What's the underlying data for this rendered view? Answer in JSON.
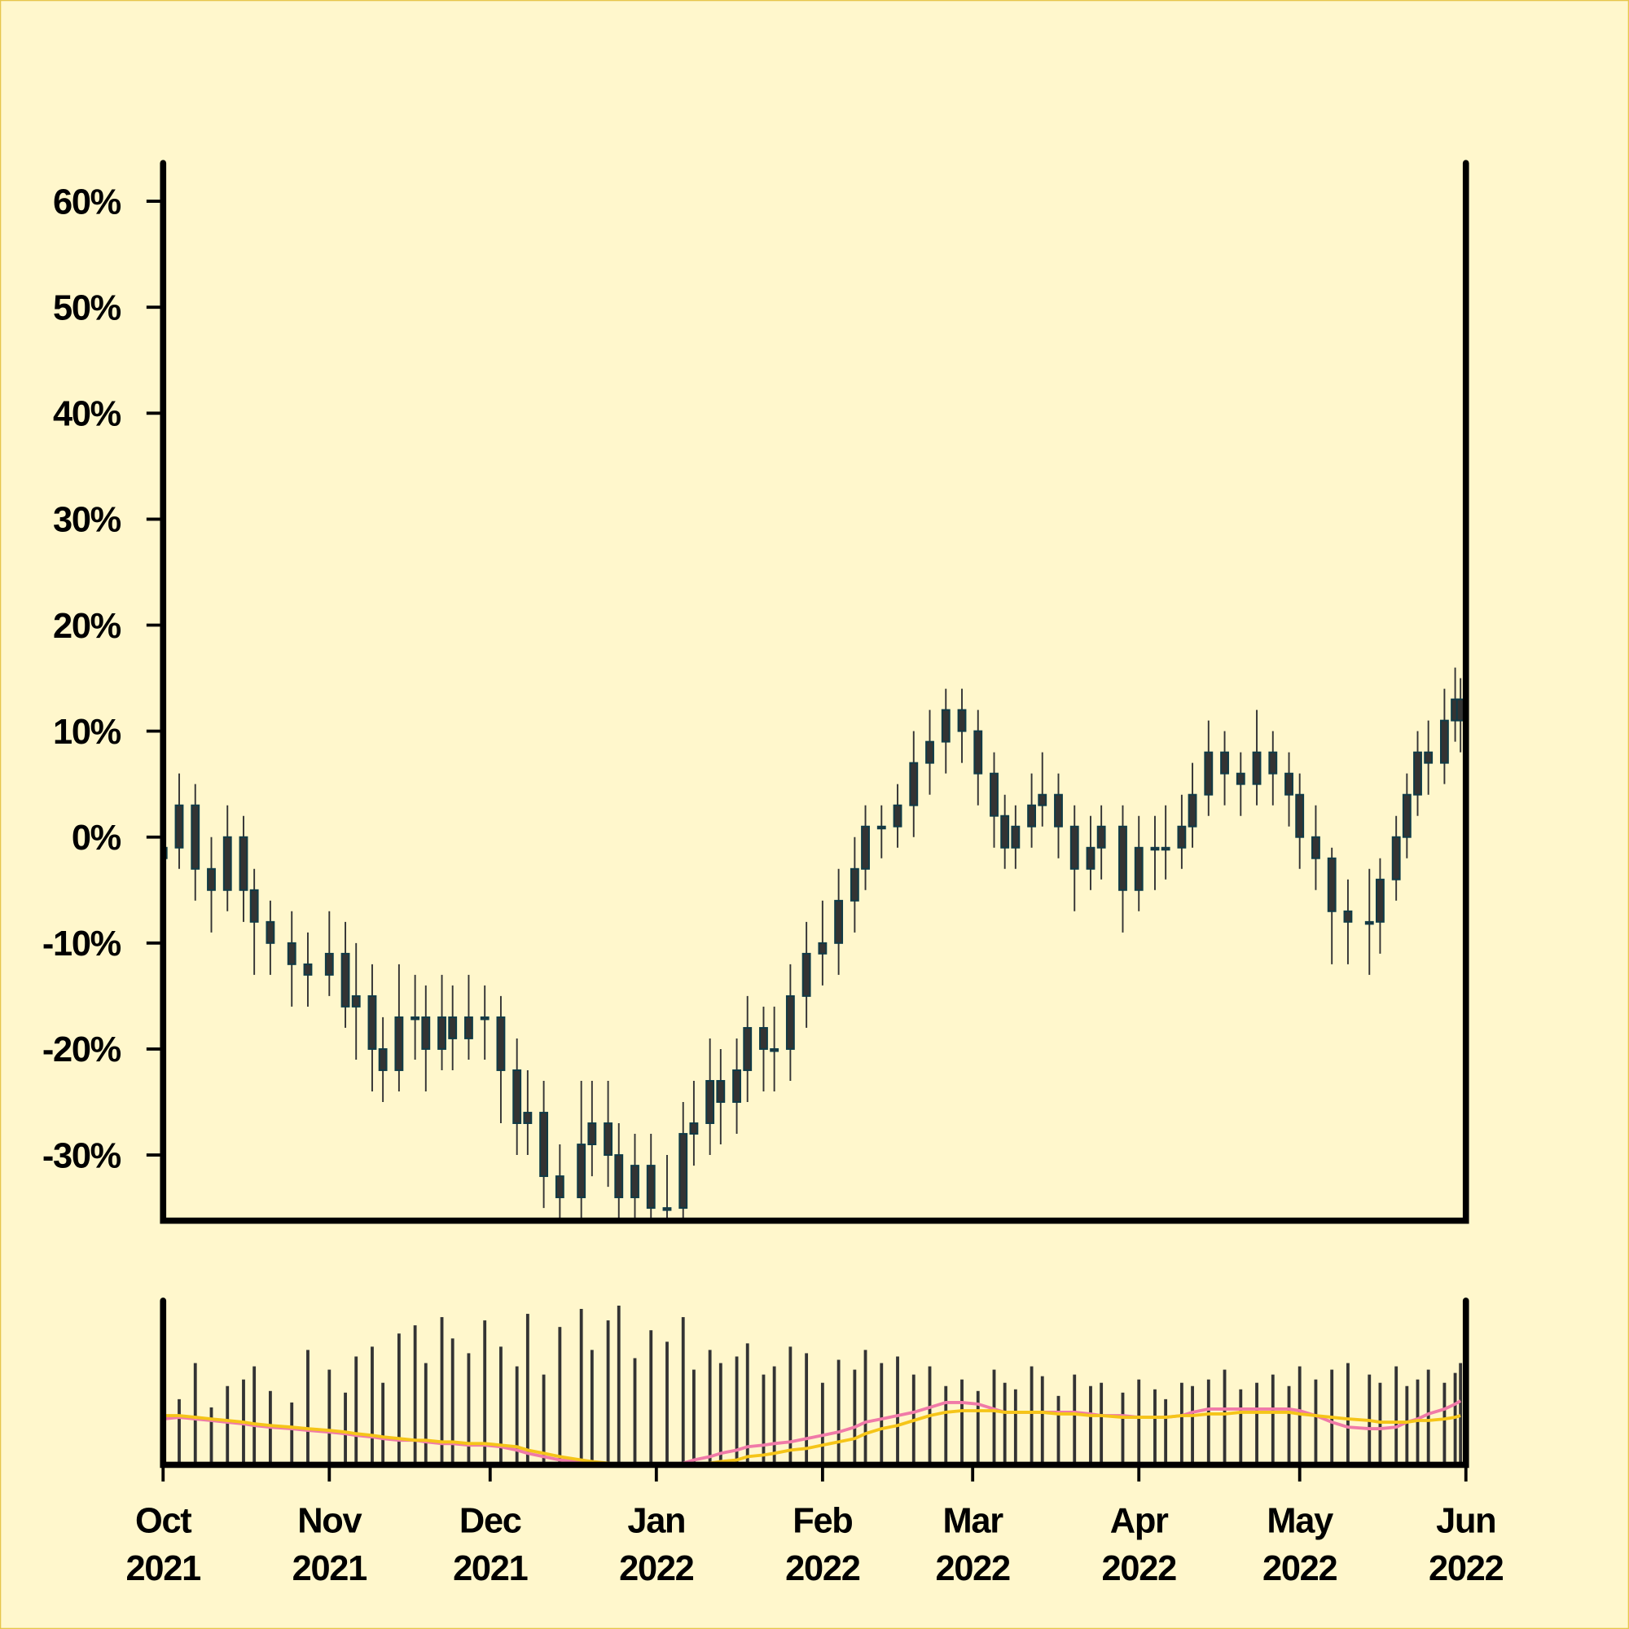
{
  "chart_data": [
    {
      "type": "candlestick",
      "x": [
        0,
        3,
        6,
        9,
        12,
        15,
        17,
        20,
        24,
        27,
        31,
        34,
        36,
        39,
        41,
        44,
        47,
        49,
        52,
        54,
        57,
        60,
        63,
        66,
        68,
        71,
        74,
        78,
        80,
        83,
        85,
        88,
        91,
        94,
        97,
        99,
        102,
        104,
        107,
        109,
        112,
        114,
        117,
        120,
        123,
        126,
        129,
        131,
        134,
        137,
        140,
        143,
        146,
        149,
        152,
        155,
        157,
        159,
        162,
        164,
        167,
        170,
        173,
        175,
        179,
        182,
        185,
        187,
        190,
        192,
        195,
        198,
        201,
        204,
        207,
        210,
        212,
        215,
        218,
        221,
        225,
        227,
        230,
        232,
        234,
        236,
        239,
        241,
        242
      ],
      "open": [
        -2,
        -1,
        3,
        -3,
        -5,
        0,
        -5,
        -8,
        -10,
        -12,
        -13,
        -11,
        -16,
        -15,
        -20,
        -22,
        -17,
        -17,
        -20,
        -17,
        -19,
        -17,
        -17,
        -22,
        -27,
        -26,
        -32,
        -34,
        -29,
        -27,
        -30,
        -34,
        -31,
        -35,
        -35,
        -28,
        -27,
        -23,
        -25,
        -22,
        -18,
        -20,
        -20,
        -15,
        -11,
        -10,
        -6,
        -3,
        1,
        1,
        3,
        7,
        9,
        12,
        10,
        6,
        2,
        -1,
        1,
        3,
        4,
        1,
        -3,
        -1,
        1,
        -5,
        -1,
        -1,
        -1,
        1,
        4,
        8,
        6,
        5,
        8,
        6,
        4,
        0,
        -2,
        -7,
        -8,
        -8,
        -4,
        0,
        4,
        8,
        7,
        11,
        13
      ],
      "high": [
        1,
        6,
        5,
        0,
        3,
        2,
        -3,
        -6,
        -7,
        -9,
        -7,
        -8,
        -10,
        -12,
        -17,
        -12,
        -13,
        -14,
        -13,
        -14,
        -13,
        -14,
        -15,
        -19,
        -22,
        -23,
        -29,
        -23,
        -23,
        -23,
        -27,
        -28,
        -28,
        -30,
        -25,
        -23,
        -19,
        -20,
        -19,
        -15,
        -16,
        -16,
        -12,
        -8,
        -6,
        -3,
        0,
        3,
        3,
        5,
        10,
        12,
        14,
        14,
        12,
        8,
        4,
        3,
        6,
        8,
        6,
        3,
        2,
        3,
        3,
        2,
        2,
        3,
        4,
        7,
        11,
        10,
        8,
        12,
        10,
        8,
        6,
        3,
        -1,
        -4,
        -3,
        -2,
        2,
        6,
        10,
        11,
        14,
        16,
        15
      ],
      "low": [
        -4,
        -3,
        -6,
        -9,
        -7,
        -8,
        -13,
        -13,
        -16,
        -16,
        -15,
        -18,
        -21,
        -24,
        -25,
        -24,
        -21,
        -24,
        -22,
        -22,
        -21,
        -21,
        -27,
        -30,
        -30,
        -35,
        -37,
        -36,
        -32,
        -33,
        -37,
        -37,
        -38,
        -38,
        -37,
        -31,
        -30,
        -29,
        -28,
        -25,
        -24,
        -24,
        -23,
        -18,
        -14,
        -13,
        -9,
        -5,
        -2,
        -1,
        0,
        4,
        6,
        7,
        3,
        -1,
        -3,
        -3,
        -1,
        1,
        -2,
        -7,
        -5,
        -4,
        -9,
        -7,
        -5,
        -4,
        -3,
        -1,
        2,
        3,
        2,
        3,
        3,
        1,
        -3,
        -5,
        -12,
        -12,
        -13,
        -11,
        -6,
        -2,
        2,
        4,
        5,
        9,
        8
      ],
      "close": [
        -1,
        3,
        -3,
        -5,
        0,
        -5,
        -8,
        -10,
        -12,
        -13,
        -11,
        -16,
        -15,
        -20,
        -22,
        -17,
        -17,
        -20,
        -17,
        -19,
        -17,
        -17,
        -22,
        -27,
        -26,
        -32,
        -34,
        -29,
        -27,
        -30,
        -34,
        -31,
        -35,
        -35,
        -28,
        -27,
        -23,
        -25,
        -22,
        -18,
        -20,
        -20,
        -15,
        -11,
        -10,
        -6,
        -3,
        1,
        1,
        3,
        7,
        9,
        12,
        10,
        6,
        2,
        -1,
        1,
        3,
        4,
        1,
        -3,
        -1,
        1,
        -5,
        -1,
        -1,
        -1,
        1,
        4,
        8,
        6,
        5,
        8,
        6,
        4,
        0,
        -2,
        -7,
        -8,
        -8,
        -4,
        0,
        4,
        8,
        7,
        11,
        13,
        11
      ],
      "color": "#333333",
      "edge_color": "#0f3b47",
      "xlim": [
        0,
        243
      ],
      "ylim": [
        -36.2,
        63.6
      ],
      "yticks": [
        {
          "value": -30,
          "label": "-30%"
        },
        {
          "value": -20,
          "label": "-20%"
        },
        {
          "value": -10,
          "label": "-10%"
        },
        {
          "value": 0,
          "label": "0%"
        },
        {
          "value": 10,
          "label": "10%"
        },
        {
          "value": 20,
          "label": "20%"
        },
        {
          "value": 30,
          "label": "30%"
        },
        {
          "value": 40,
          "label": "40%"
        },
        {
          "value": 50,
          "label": "50%"
        },
        {
          "value": 60,
          "label": "60%"
        }
      ]
    },
    {
      "type": "volume",
      "x": [
        0,
        3,
        6,
        9,
        12,
        15,
        17,
        20,
        24,
        27,
        31,
        34,
        36,
        39,
        41,
        44,
        47,
        49,
        52,
        54,
        57,
        60,
        63,
        66,
        68,
        71,
        74,
        78,
        80,
        83,
        85,
        88,
        91,
        94,
        97,
        99,
        102,
        104,
        107,
        109,
        112,
        114,
        117,
        120,
        123,
        126,
        129,
        131,
        134,
        137,
        140,
        143,
        146,
        149,
        152,
        155,
        157,
        159,
        162,
        164,
        167,
        170,
        173,
        175,
        179,
        182,
        185,
        187,
        190,
        192,
        195,
        198,
        201,
        204,
        207,
        210,
        212,
        215,
        218,
        221,
        225,
        227,
        230,
        232,
        234,
        236,
        239,
        241,
        242
      ],
      "values": [
        55,
        40,
        62,
        35,
        48,
        52,
        60,
        45,
        38,
        70,
        58,
        44,
        66,
        72,
        50,
        80,
        85,
        62,
        90,
        77,
        68,
        88,
        72,
        60,
        92,
        55,
        84,
        95,
        70,
        88,
        97,
        65,
        82,
        75,
        90,
        58,
        70,
        62,
        66,
        74,
        55,
        60,
        72,
        68,
        50,
        64,
        58,
        70,
        62,
        66,
        55,
        60,
        48,
        52,
        45,
        58,
        50,
        46,
        60,
        54,
        42,
        55,
        48,
        50,
        44,
        52,
        46,
        40,
        50,
        48,
        52,
        58,
        46,
        50,
        55,
        48,
        60,
        52,
        58,
        62,
        55,
        50,
        60,
        48,
        52,
        58,
        50,
        56,
        62
      ],
      "color": "#333333",
      "lines": [
        {
          "color": "#f07aa8",
          "values": [
            28,
            29,
            28,
            27,
            26,
            25,
            24,
            23,
            22,
            21,
            20,
            19,
            18,
            17,
            16,
            15,
            15,
            14,
            13,
            13,
            12,
            12,
            11,
            9,
            7,
            5,
            3,
            2,
            1,
            0,
            0,
            0,
            0,
            0,
            1,
            3,
            5,
            7,
            9,
            11,
            12,
            13,
            14,
            16,
            18,
            20,
            23,
            26,
            28,
            30,
            32,
            35,
            38,
            38,
            37,
            34,
            32,
            32,
            32,
            32,
            32,
            32,
            31,
            30,
            30,
            29,
            29,
            29,
            30,
            32,
            34,
            34,
            34,
            34,
            34,
            34,
            33,
            30,
            26,
            23,
            22,
            22,
            23,
            26,
            28,
            31,
            34,
            37,
            39
          ]
        },
        {
          "color": "#f5c518",
          "values": [
            30,
            30,
            29,
            28,
            27,
            26,
            25,
            24,
            23,
            22,
            21,
            20,
            19,
            18,
            17,
            16,
            15,
            15,
            14,
            14,
            13,
            13,
            12,
            11,
            9,
            7,
            5,
            3,
            2,
            1,
            0,
            0,
            0,
            0,
            0,
            0,
            1,
            2,
            3,
            5,
            6,
            7,
            9,
            10,
            12,
            14,
            16,
            19,
            22,
            24,
            27,
            30,
            32,
            33,
            33,
            33,
            32,
            32,
            32,
            32,
            31,
            31,
            30,
            30,
            29,
            29,
            29,
            29,
            30,
            30,
            31,
            31,
            32,
            32,
            32,
            32,
            31,
            30,
            29,
            28,
            27,
            26,
            26,
            26,
            27,
            27,
            28,
            29,
            30
          ]
        }
      ],
      "xlim": [
        0,
        243
      ],
      "ylim": [
        0,
        100
      ],
      "xticks": [
        {
          "value": 0,
          "label": "Oct 2021"
        },
        {
          "value": 31,
          "label": "Nov 2021"
        },
        {
          "value": 61,
          "label": "Dec 2021"
        },
        {
          "value": 92,
          "label": "Jan 2022"
        },
        {
          "value": 123,
          "label": "Feb 2022"
        },
        {
          "value": 151,
          "label": "Mar 2022"
        },
        {
          "value": 182,
          "label": "Apr 2022"
        },
        {
          "value": 212,
          "label": "May 2022"
        },
        {
          "value": 243,
          "label": "Jun 2022"
        }
      ]
    }
  ]
}
